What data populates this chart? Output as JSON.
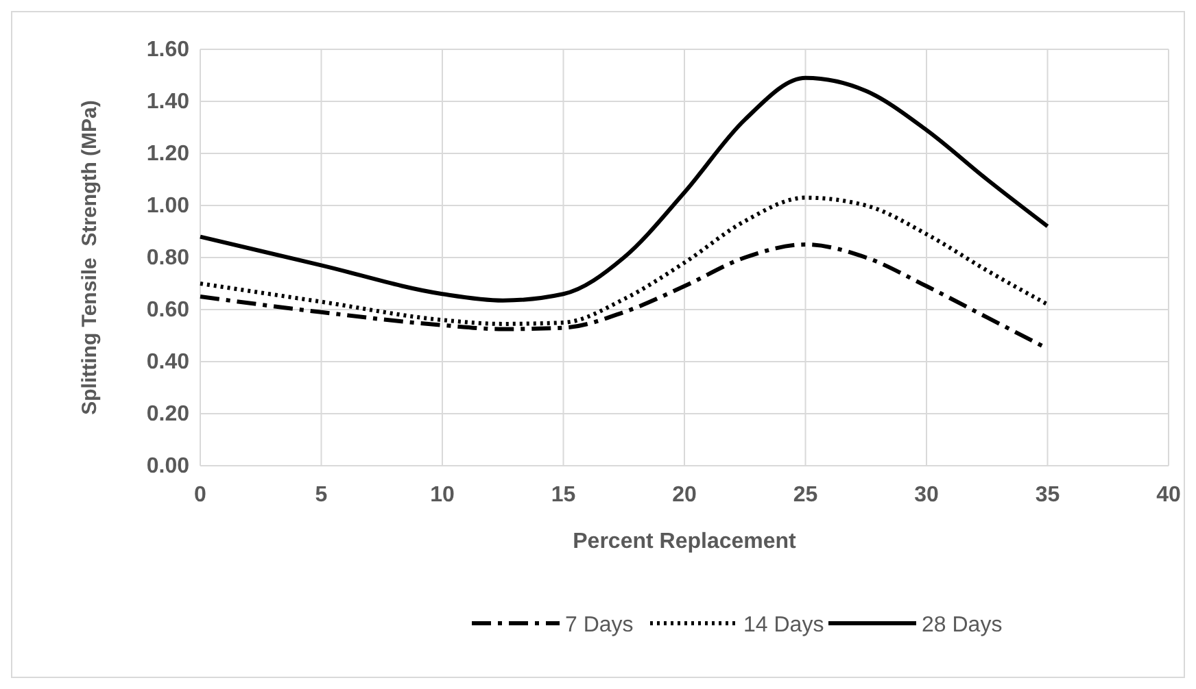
{
  "chart_data": {
    "type": "line",
    "xlabel": "Percent Replacement",
    "ylabel": "Splitting Tensile  Strength (MPa)",
    "x": [
      0,
      5,
      10,
      12.5,
      15,
      17.5,
      20,
      22.5,
      25,
      27.5,
      30,
      32.5,
      35
    ],
    "series": [
      {
        "name": "7 Days",
        "color": "#000000",
        "line_style": "dashed",
        "values": [
          0.65,
          0.59,
          0.54,
          0.525,
          0.53,
          0.59,
          0.69,
          0.8,
          0.85,
          0.8,
          0.69,
          0.57,
          0.45
        ]
      },
      {
        "name": "14 Days",
        "color": "#000000",
        "line_style": "dotted",
        "values": [
          0.7,
          0.63,
          0.56,
          0.545,
          0.55,
          0.64,
          0.78,
          0.94,
          1.03,
          1.0,
          0.89,
          0.75,
          0.62
        ]
      },
      {
        "name": "28 Days",
        "color": "#000000",
        "line_style": "solid",
        "values": [
          0.88,
          0.77,
          0.66,
          0.635,
          0.66,
          0.8,
          1.05,
          1.33,
          1.49,
          1.44,
          1.29,
          1.1,
          0.92
        ]
      }
    ],
    "xlim": [
      0,
      40
    ],
    "xticks": [
      0,
      5,
      10,
      15,
      20,
      25,
      30,
      35,
      40
    ],
    "ylim": [
      0,
      1.6
    ],
    "yticks": [
      {
        "value": 0,
        "label": "0.00"
      },
      {
        "value": 0.2,
        "label": "0.20"
      },
      {
        "value": 0.4,
        "label": "0.40"
      },
      {
        "value": 0.6,
        "label": "0.60"
      },
      {
        "value": 0.8,
        "label": "0.80"
      },
      {
        "value": 1,
        "label": "1.00"
      },
      {
        "value": 1.2,
        "label": "1.20"
      },
      {
        "value": 1.4,
        "label": "1.40"
      },
      {
        "value": 1.6,
        "label": "1.60"
      }
    ],
    "grid": true,
    "legend": "bottom",
    "marker": "none"
  }
}
